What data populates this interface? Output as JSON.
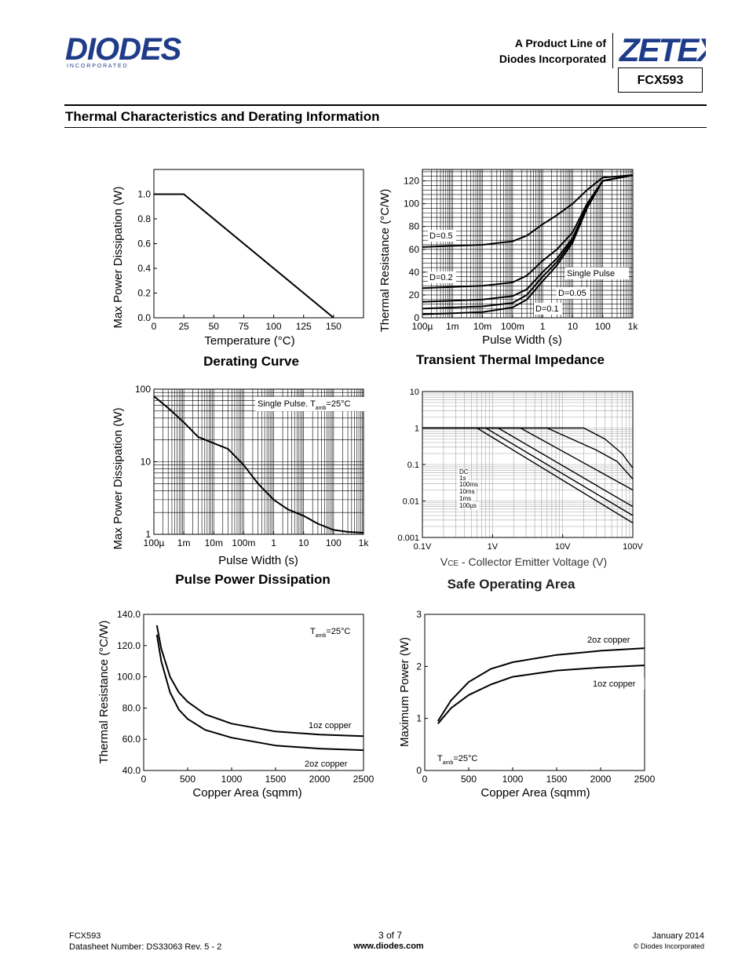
{
  "header": {
    "logo_text": "DIODES",
    "logo_sub": "I N C O R P O R A T E D",
    "product_line_1": "A Product Line of",
    "product_line_2": "Diodes Incorporated",
    "brand": "ZETEX",
    "part_number": "FCX593",
    "section_title": "Thermal Characteristics and Derating Information"
  },
  "footer": {
    "part_number": "FCX593",
    "datasheet": "Datasheet Number: DS33063 Rev. 5 - 2",
    "page": "3 of 7",
    "website": "www.diodes.com",
    "date": "January 2014",
    "copyright": "© Diodes Incorporated"
  },
  "chart_data": [
    {
      "id": "derating",
      "type": "line",
      "title": "Derating Curve",
      "xlabel": "Temperature (°C)",
      "ylabel": "Max Power Dissipation (W)",
      "xlim": [
        0,
        175
      ],
      "ylim": [
        0,
        1.2
      ],
      "xticks": [
        0,
        25,
        50,
        75,
        100,
        125,
        150
      ],
      "xtick_labels": [
        "0",
        "25",
        "50",
        "75",
        "100",
        "125",
        "150"
      ],
      "yticks": [
        0,
        0.2,
        0.4,
        0.6,
        0.8,
        1.0
      ],
      "ytick_labels": [
        "0.0",
        "0.2",
        "0.4",
        "0.6",
        "0.8",
        "1.0"
      ],
      "grid": false,
      "series": [
        {
          "x": [
            0,
            25,
            150
          ],
          "y": [
            1.0,
            1.0,
            0
          ]
        }
      ]
    },
    {
      "id": "transient",
      "type": "line",
      "title": "Transient Thermal Impedance",
      "xlabel": "Pulse Width (s)",
      "ylabel": "Thermal Resistance (°C/W)",
      "xscale": "log",
      "xlim": [
        0.0001,
        1000
      ],
      "ylim": [
        0,
        130
      ],
      "xticks": [
        0.0001,
        0.001,
        0.01,
        0.1,
        1,
        10,
        100,
        1000
      ],
      "xtick_labels": [
        "100µ",
        "1m",
        "10m",
        "100m",
        "1",
        "10",
        "100",
        "1k"
      ],
      "yticks": [
        0,
        20,
        40,
        60,
        80,
        100,
        120
      ],
      "ytick_labels": [
        "0",
        "20",
        "40",
        "60",
        "80",
        "100",
        "120"
      ],
      "grid": true,
      "series": [
        {
          "name": "D=0.5",
          "x": [
            0.0001,
            0.001,
            0.01,
            0.1,
            0.3,
            1,
            3,
            10,
            30,
            100,
            1000
          ],
          "y": [
            62,
            63,
            64,
            67,
            72,
            82,
            90,
            100,
            112,
            123,
            125
          ]
        },
        {
          "name": "D=0.2",
          "x": [
            0.0001,
            0.001,
            0.01,
            0.1,
            0.3,
            1,
            3,
            10,
            30,
            100,
            1000
          ],
          "y": [
            26,
            27,
            28,
            31,
            37,
            50,
            60,
            75,
            100,
            120,
            125
          ]
        },
        {
          "name": "D=0.1",
          "x": [
            0.0001,
            0.001,
            0.01,
            0.1,
            0.3,
            1,
            3,
            10,
            30,
            100,
            1000
          ],
          "y": [
            14,
            15,
            16,
            19,
            25,
            40,
            52,
            70,
            98,
            120,
            125
          ]
        },
        {
          "name": "D=0.05",
          "x": [
            0.0001,
            0.001,
            0.01,
            0.1,
            0.3,
            1,
            3,
            10,
            30,
            100,
            1000
          ],
          "y": [
            8,
            9,
            10,
            13,
            20,
            36,
            49,
            68,
            97,
            120,
            125
          ]
        },
        {
          "name": "Single Pulse",
          "x": [
            0.0001,
            0.001,
            0.01,
            0.1,
            0.3,
            1,
            3,
            10,
            30,
            100,
            1000
          ],
          "y": [
            3,
            4,
            5,
            9,
            16,
            32,
            46,
            66,
            96,
            120,
            125
          ]
        }
      ]
    },
    {
      "id": "pulse-power",
      "type": "line",
      "title": "Pulse Power Dissipation",
      "xlabel": "Pulse Width (s)",
      "ylabel": "Max Power Dissipation (W)",
      "xscale": "log",
      "yscale": "log",
      "xlim": [
        0.0001,
        1000
      ],
      "ylim": [
        1,
        100
      ],
      "xticks": [
        0.0001,
        0.001,
        0.01,
        0.1,
        1,
        10,
        100,
        1000
      ],
      "xtick_labels": [
        "100µ",
        "1m",
        "10m",
        "100m",
        "1",
        "10",
        "100",
        "1k"
      ],
      "yticks": [
        1,
        10,
        100
      ],
      "ytick_labels": [
        "1",
        "10",
        "100"
      ],
      "grid": true,
      "annotation": "Single Pulse. T",
      "annotation_sub": "amb",
      "annotation_tail": "=25°C",
      "series": [
        {
          "x": [
            0.0001,
            0.0003,
            0.001,
            0.003,
            0.01,
            0.03,
            0.1,
            0.3,
            1,
            3,
            10,
            30,
            100,
            300,
            1000
          ],
          "y": [
            80,
            55,
            35,
            22,
            18,
            15,
            9,
            5,
            3,
            2.2,
            1.8,
            1.4,
            1.15,
            1.08,
            1.05
          ]
        }
      ]
    },
    {
      "id": "soa",
      "type": "line",
      "title": "Safe Operating Area",
      "xlabel_prefix": "V",
      "xlabel_sub": "CE",
      "xlabel_rest": " - Collector Emitter Voltage (V)",
      "xscale": "log",
      "yscale": "log",
      "xlim": [
        0.1,
        100
      ],
      "ylim": [
        0.001,
        10
      ],
      "xticks": [
        0.1,
        1,
        10,
        100
      ],
      "xtick_labels": [
        "0.1V",
        "1V",
        "10V",
        "100V"
      ],
      "yticks": [
        0.001,
        0.01,
        0.1,
        1,
        10
      ],
      "ytick_labels": [
        "0.001",
        "0.01",
        "0.1",
        "1",
        "10"
      ],
      "grid": true,
      "series": [
        {
          "name": "DC",
          "x": [
            0.1,
            0.6,
            100
          ],
          "y": [
            1,
            1,
            0.0025
          ]
        },
        {
          "name": "1s",
          "x": [
            0.1,
            0.8,
            100
          ],
          "y": [
            1,
            1,
            0.004
          ]
        },
        {
          "name": "100ms",
          "x": [
            0.1,
            1.2,
            100
          ],
          "y": [
            1,
            1,
            0.007
          ]
        },
        {
          "name": "10ms",
          "x": [
            0.1,
            2.5,
            100
          ],
          "y": [
            1,
            1,
            0.02
          ]
        },
        {
          "name": "1ms",
          "x": [
            0.1,
            6,
            30,
            60,
            100
          ],
          "y": [
            1,
            1,
            0.25,
            0.12,
            0.04
          ]
        },
        {
          "name": "100µs",
          "x": [
            0.1,
            20,
            40,
            70,
            100
          ],
          "y": [
            1,
            1,
            0.5,
            0.2,
            0.08
          ]
        }
      ]
    },
    {
      "id": "rth-area",
      "type": "line",
      "xlabel": "Copper Area (sqmm)",
      "ylabel": "Thermal Resistance (°C/W)",
      "xlim": [
        0,
        2500
      ],
      "ylim": [
        40,
        140
      ],
      "xticks": [
        0,
        500,
        1000,
        1500,
        2000,
        2500
      ],
      "xtick_labels": [
        "0",
        "500",
        "1000",
        "1500",
        "2000",
        "2500"
      ],
      "yticks": [
        40,
        60,
        80,
        100,
        120,
        140
      ],
      "ytick_labels": [
        "40.0",
        "60.0",
        "80.0",
        "100.0",
        "120.0",
        "140.0"
      ],
      "grid": false,
      "annotation": "T",
      "annotation_sub": "amb",
      "annotation_tail": "=25°C",
      "series": [
        {
          "name": "1oz copper",
          "x": [
            150,
            200,
            300,
            400,
            500,
            700,
            1000,
            1500,
            2000,
            2500
          ],
          "y": [
            133,
            118,
            100,
            90,
            84,
            76,
            70,
            65,
            63,
            62
          ]
        },
        {
          "name": "2oz copper",
          "x": [
            150,
            200,
            300,
            400,
            500,
            700,
            1000,
            1500,
            2000,
            2500
          ],
          "y": [
            127,
            110,
            90,
            79,
            73,
            66,
            61,
            56,
            54,
            53
          ]
        }
      ]
    },
    {
      "id": "pmax-area",
      "type": "line",
      "xlabel": "Copper Area (sqmm)",
      "ylabel": "Maximum Power (W)",
      "xlim": [
        0,
        2500
      ],
      "ylim": [
        0,
        3
      ],
      "xticks": [
        0,
        500,
        1000,
        1500,
        2000,
        2500
      ],
      "xtick_labels": [
        "0",
        "500",
        "1000",
        "1500",
        "2000",
        "2500"
      ],
      "yticks": [
        0,
        1,
        2,
        3
      ],
      "ytick_labels": [
        "0",
        "1",
        "2",
        "3"
      ],
      "grid": false,
      "annotation": "T",
      "annotation_sub": "amb",
      "annotation_tail": "=25°C",
      "series": [
        {
          "name": "2oz copper",
          "x": [
            150,
            300,
            500,
            750,
            1000,
            1500,
            2000,
            2500
          ],
          "y": [
            0.95,
            1.35,
            1.7,
            1.95,
            2.08,
            2.22,
            2.3,
            2.35
          ]
        },
        {
          "name": "1oz copper",
          "x": [
            150,
            300,
            500,
            750,
            1000,
            1500,
            2000,
            2500
          ],
          "y": [
            0.9,
            1.2,
            1.45,
            1.65,
            1.8,
            1.92,
            1.98,
            2.02
          ]
        }
      ]
    }
  ]
}
